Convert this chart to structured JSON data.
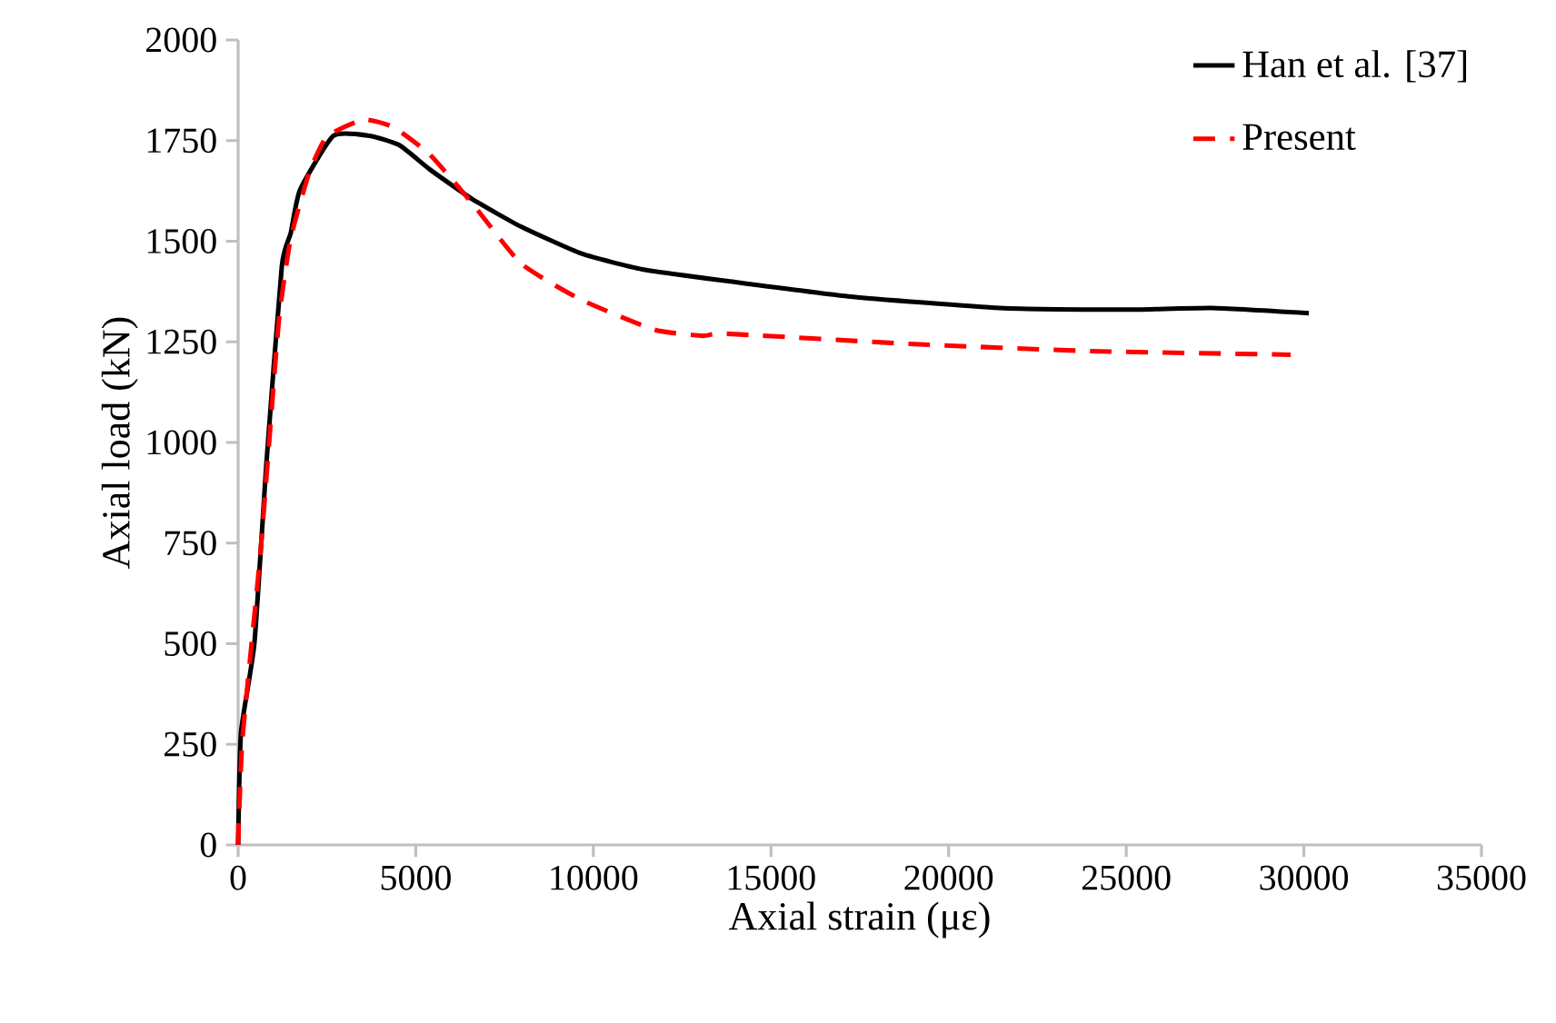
{
  "chart_data": {
    "type": "line",
    "xlabel": "Axial strain (με)",
    "ylabel": "Axial load (kN)",
    "xlim": [
      0,
      35000
    ],
    "xticks": [
      0,
      5000,
      10000,
      15000,
      20000,
      25000,
      30000,
      35000
    ],
    "ylim": [
      0,
      2000
    ],
    "yticks": [
      0,
      250,
      500,
      750,
      1000,
      1250,
      1500,
      1750,
      2000
    ],
    "grid": false,
    "legend": "top right",
    "marker": "none",
    "series": [
      {
        "name": "Han et al. [37]",
        "color": "#000000",
        "line_style": "solid",
        "x": [
          0,
          80,
          460,
          800,
          1230,
          1480,
          1740,
          2680,
          3700,
          4550,
          5400,
          6600,
          7970,
          9670,
          11380,
          13760,
          17170,
          21440,
          25000,
          27410,
          30140
        ],
        "values": [
          0,
          278,
          503,
          953,
          1438,
          1520,
          1627,
          1762,
          1762,
          1738,
          1678,
          1604,
          1536,
          1469,
          1430,
          1401,
          1363,
          1334,
          1330,
          1334,
          1321
        ]
      },
      {
        "name": "Present",
        "color": "#ff0000",
        "line_style": "dashed",
        "x": [
          0,
          120,
          630,
          1140,
          1480,
          2000,
          2500,
          3530,
          4380,
          5400,
          6600,
          7970,
          9670,
          11720,
          13080,
          13760,
          18880,
          23990,
          29630
        ],
        "values": [
          0,
          262,
          728,
          1296,
          1506,
          1670,
          1760,
          1802,
          1783,
          1715,
          1593,
          1444,
          1354,
          1280,
          1265,
          1270,
          1245,
          1227,
          1218
        ]
      }
    ]
  }
}
